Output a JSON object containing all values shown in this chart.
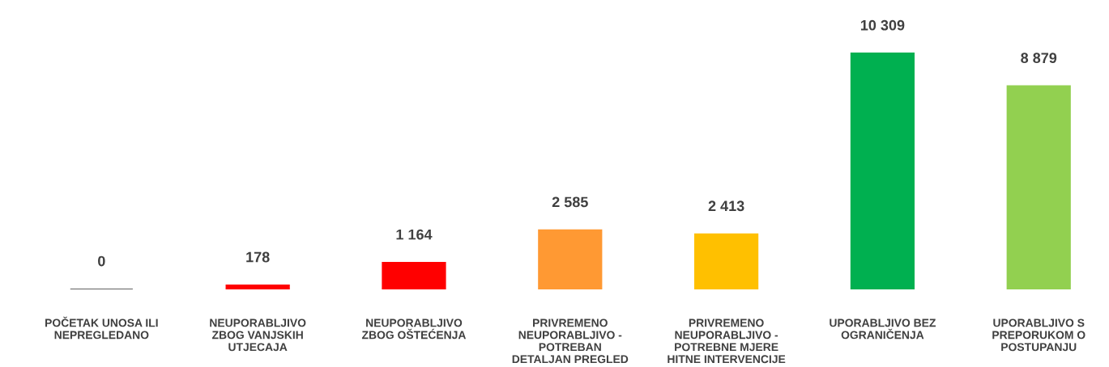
{
  "chart_data": {
    "type": "bar",
    "categories": [
      "POČETAK UNOSA ILI\nNEPREGLEDANO",
      "NEUPORABLJIVO\nZBOG VANJSKIH\nUTJECAJA",
      "NEUPORABLJIVO\nZBOG OŠTEĆENJA",
      "PRIVREMENO\nNEUPORABLJIVO -\nPOTREBAN\nDETALJAN PREGLED",
      "PRIVREMENO\nNEUPORABLJIVO -\nPOTREBNE MJERE\nHITNE INTERVENCIJE",
      "UPORABLJIVO BEZ\nOGRANIČENJA",
      "UPORABLJIVO S\nPREPORUKOM O\nPOSTUPANJU"
    ],
    "values": [
      0,
      178,
      1164,
      2585,
      2413,
      10309,
      8879
    ],
    "colors": [
      "#606060",
      "#ff0000",
      "#ff0000",
      "#ff9933",
      "#ffc000",
      "#00b050",
      "#92d050"
    ],
    "value_labels": [
      "0",
      "178",
      "1 164",
      "2 585",
      "2 413",
      "10 309",
      "8 879"
    ],
    "grid": false
  }
}
